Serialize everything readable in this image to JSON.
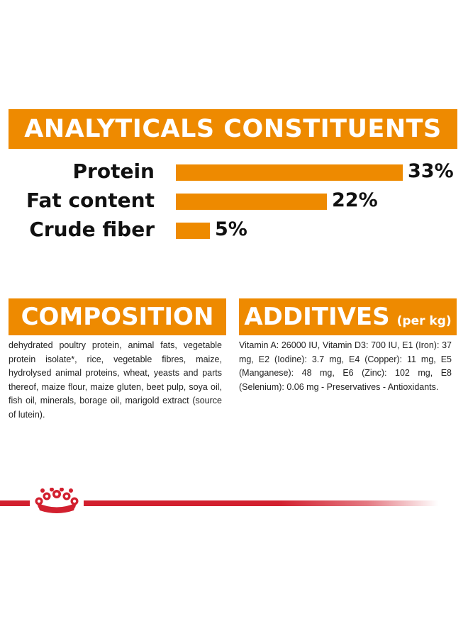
{
  "analytics": {
    "title": "ANALYTICALS CONSTITUENTS",
    "rows": [
      {
        "label": "Protein",
        "percent_label": "33%",
        "value": 33
      },
      {
        "label": "Fat content",
        "percent_label": "22%",
        "value": 22
      },
      {
        "label": "Crude fiber",
        "percent_label": "5%",
        "value": 5
      }
    ]
  },
  "composition": {
    "title": "COMPOSITION",
    "text": "dehydrated poultry protein, animal fats, vegetable protein isolate*, rice, vegetable fibres, maize, hydrolysed animal proteins, wheat, yeasts and parts thereof, maize flour, maize gluten, beet pulp, soya oil, fish oil, minerals, borage oil, marigold extract (source of lutein)."
  },
  "additives": {
    "title": "ADDITIVES",
    "subtitle": "(per kg)",
    "text": "Vitamin A: 26000 IU, Vitamin D3: 700 IU, E1 (Iron): 37 mg, E2 (Iodine): 3.7 mg, E4 (Copper): 11 mg, E5 (Manganese): 48 mg, E6 (Zinc): 102 mg, E8 (Selenium): 0.06 mg - Preservatives - Antioxidants."
  },
  "colors": {
    "accent": "#ee8a00",
    "brand_red": "#d2202f",
    "text": "#111111"
  },
  "logo": {
    "icon": "royal-canin-crown-icon"
  }
}
